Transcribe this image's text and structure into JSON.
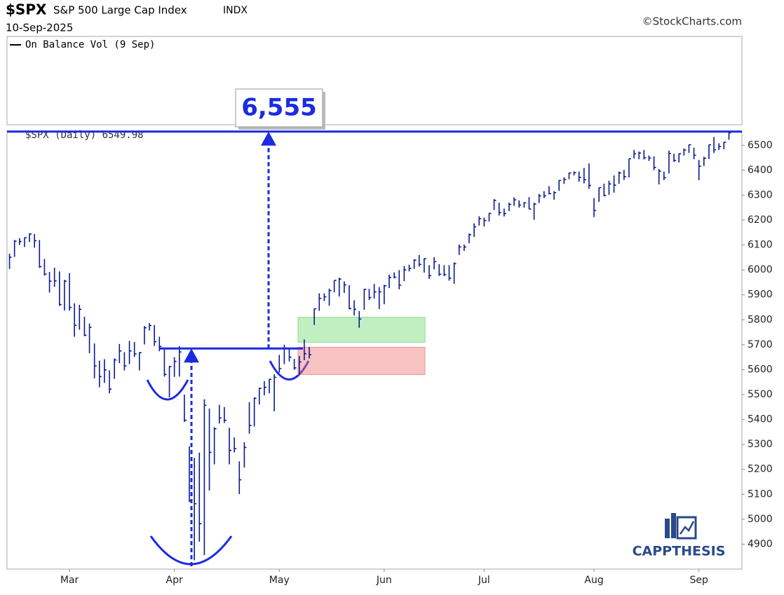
{
  "chart_data": {
    "type": "ohlc",
    "symbol": "$SPX",
    "title": "S&P 500 Large Cap Index",
    "exchange": "INDX",
    "date": "10-Sep-2025",
    "source": "©StockCharts.com",
    "indicator_label": "On Balance Vol (9 Sep)",
    "series_label": "$SPX (Daily) 6549.98",
    "watermark": "CAPPTHESIS",
    "color": "#0a1a8c",
    "categories": [
      null,
      null,
      null,
      null,
      null,
      null,
      null,
      null,
      null,
      null,
      null,
      null,
      "Mar",
      null,
      null,
      null,
      null,
      null,
      null,
      null,
      null,
      null,
      null,
      null,
      null,
      null,
      null,
      null,
      null,
      null,
      null,
      null,
      null,
      "Apr",
      null,
      null,
      null,
      null,
      null,
      null,
      null,
      null,
      null,
      null,
      null,
      null,
      null,
      null,
      null,
      null,
      null,
      null,
      null,
      null,
      "May",
      null,
      null,
      null,
      null,
      null,
      null,
      null,
      null,
      null,
      null,
      null,
      null,
      null,
      null,
      null,
      null,
      null,
      null,
      null,
      null,
      "Jun",
      null,
      null,
      null,
      null,
      null,
      null,
      null,
      null,
      null,
      null,
      null,
      null,
      null,
      null,
      null,
      null,
      null,
      null,
      null,
      "Jul",
      null,
      null,
      null,
      null,
      null,
      null,
      null,
      null,
      null,
      null,
      null,
      null,
      null,
      null,
      null,
      null,
      null,
      null,
      null,
      null,
      null,
      "Aug",
      null,
      null,
      null,
      null,
      null,
      null,
      null,
      null,
      null,
      null,
      null,
      null,
      null,
      null,
      null,
      null,
      null,
      null,
      null,
      null,
      "Sep",
      null,
      null,
      null,
      null,
      null,
      null
    ],
    "high": [
      6065,
      6120,
      6127,
      6130,
      6147,
      6144,
      6120,
      6044,
      5992,
      6009,
      5994,
      5960,
      5987,
      5866,
      5860,
      5812,
      5785,
      5705,
      5636,
      5642,
      5597,
      5645,
      5703,
      5670,
      5715,
      5711,
      5670,
      5775,
      5786,
      5779,
      5732,
      5685,
      5615,
      5650,
      5695,
      5500,
      5292,
      5246,
      5267,
      5481,
      5444,
      5369,
      5459,
      5450,
      5367,
      5328,
      5232,
      5309,
      5469,
      5489,
      5528,
      5554,
      5563,
      5581,
      5659,
      5700,
      5683,
      5643,
      5655,
      5721,
      5691,
      5845,
      5906,
      5906,
      5925,
      5958,
      5969,
      5954,
      5939,
      5878,
      5835,
      5924,
      5924,
      5944,
      5931,
      5940,
      5981,
      5990,
      5999,
      6016,
      6021,
      6043,
      6060,
      6046,
      6019,
      6051,
      6023,
      6019,
      6019,
      6030,
      6102,
      6102,
      6146,
      6187,
      6215,
      6210,
      6228,
      6284,
      6270,
      6246,
      6270,
      6291,
      6279,
      6272,
      6292,
      6269,
      6305,
      6316,
      6336,
      6316,
      6360,
      6371,
      6390,
      6395,
      6395,
      6409,
      6427,
      6288,
      6330,
      6346,
      6358,
      6379,
      6395,
      6401,
      6446,
      6481,
      6475,
      6481,
      6459,
      6456,
      6405,
      6394,
      6479,
      6466,
      6467,
      6487,
      6503,
      6490,
      6441,
      6454,
      6502,
      6533,
      6508,
      6513,
      6555
    ],
    "low": [
      6004,
      6052,
      6100,
      6092,
      6112,
      6089,
      6008,
      5977,
      5909,
      5932,
      5856,
      5837,
      5837,
      5732,
      5760,
      5734,
      5666,
      5565,
      5529,
      5547,
      5505,
      5563,
      5626,
      5597,
      5622,
      5651,
      5597,
      5701,
      5757,
      5695,
      5674,
      5572,
      5489,
      5571,
      5572,
      5390,
      5069,
      4835,
      4910,
      4856,
      5115,
      5220,
      5384,
      5386,
      5220,
      5268,
      5101,
      5207,
      5343,
      5372,
      5460,
      5497,
      5505,
      5433,
      5588,
      5622,
      5633,
      5599,
      5578,
      5638,
      5645,
      5779,
      5836,
      5875,
      5856,
      5910,
      5893,
      5908,
      5842,
      5817,
      5768,
      5840,
      5879,
      5885,
      5843,
      5862,
      5927,
      5966,
      5922,
      5955,
      5994,
      6004,
      6013,
      5989,
      5964,
      6002,
      5976,
      5975,
      5957,
      5944,
      6060,
      6076,
      6107,
      6132,
      6178,
      6174,
      6194,
      6240,
      6218,
      6214,
      6236,
      6257,
      6250,
      6250,
      6244,
      6201,
      6268,
      6288,
      6303,
      6282,
      6317,
      6345,
      6364,
      6379,
      6354,
      6347,
      6325,
      6212,
      6273,
      6295,
      6301,
      6310,
      6345,
      6361,
      6371,
      6447,
      6444,
      6443,
      6437,
      6400,
      6343,
      6360,
      6387,
      6433,
      6431,
      6459,
      6469,
      6444,
      6360,
      6417,
      6445,
      6469,
      6481,
      6484,
      6522
    ],
    "close": [
      6051,
      6115,
      6114,
      6129,
      6144,
      6117,
      6013,
      5983,
      5955,
      5956,
      5861,
      5955,
      5850,
      5778,
      5842,
      5738,
      5770,
      5615,
      5572,
      5599,
      5522,
      5639,
      5675,
      5615,
      5675,
      5663,
      5668,
      5768,
      5777,
      5712,
      5693,
      5581,
      5612,
      5633,
      5671,
      5397,
      5074,
      5062,
      4982,
      5457,
      5268,
      5363,
      5406,
      5397,
      5276,
      5283,
      5158,
      5288,
      5376,
      5485,
      5525,
      5529,
      5561,
      5569,
      5604,
      5687,
      5650,
      5607,
      5631,
      5664,
      5660,
      5844,
      5886,
      5892,
      5917,
      5958,
      5963,
      5940,
      5845,
      5842,
      5803,
      5922,
      5889,
      5912,
      5912,
      5936,
      5970,
      5971,
      5939,
      6000,
      6006,
      6039,
      6022,
      6045,
      5977,
      6033,
      5983,
      5981,
      5967,
      6025,
      6092,
      6092,
      6141,
      6173,
      6205,
      6198,
      6227,
      6279,
      6230,
      6226,
      6263,
      6281,
      6260,
      6269,
      6244,
      6264,
      6297,
      6297,
      6306,
      6310,
      6359,
      6363,
      6389,
      6390,
      6371,
      6362,
      6339,
      6238,
      6330,
      6299,
      6345,
      6340,
      6389,
      6374,
      6446,
      6466,
      6469,
      6450,
      6449,
      6411,
      6396,
      6370,
      6467,
      6439,
      6466,
      6481,
      6502,
      6460,
      6416,
      6448,
      6502,
      6482,
      6495,
      6512,
      6550
    ],
    "ylim": [
      4800,
      6557
    ],
    "yticks": [
      4900,
      5000,
      5100,
      5200,
      5300,
      5400,
      5500,
      5600,
      5700,
      5800,
      5900,
      6000,
      6100,
      6200,
      6300,
      6400,
      6500
    ],
    "target": {
      "value": 6555,
      "label": "6,555"
    },
    "neckline": 5685,
    "green_zone": [
      5710,
      5810
    ],
    "red_zone": [
      5580,
      5690
    ]
  }
}
